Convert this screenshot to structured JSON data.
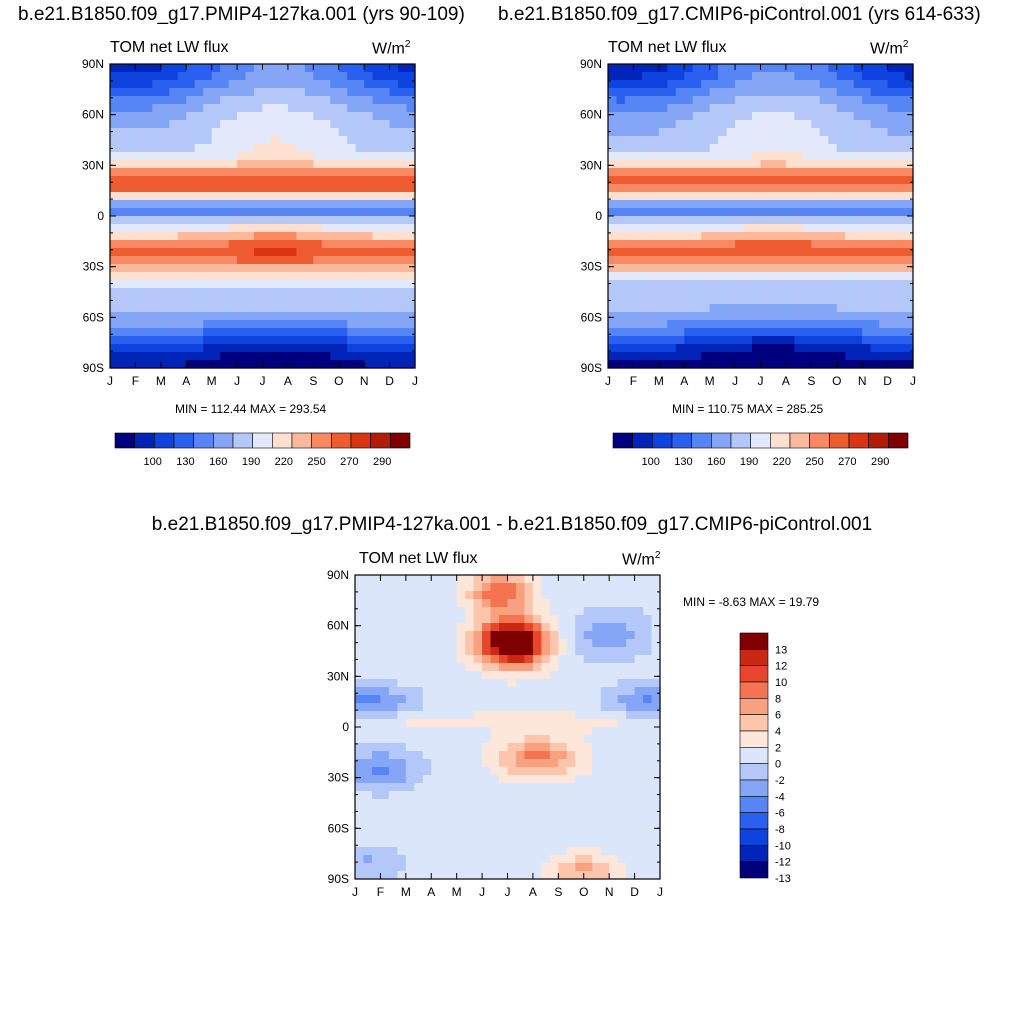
{
  "titles": {
    "left": "b.e21.B1850.f09_g17.PMIP4-127ka.001 (yrs 90-109)",
    "right": "b.e21.B1850.f09_g17.CMIP6-piControl.001 (yrs 614-633)",
    "diff": "b.e21.B1850.f09_g17.PMIP4-127ka.001 - b.e21.B1850.f09_g17.CMIP6-piControl.001"
  },
  "colors": {
    "palette13": [
      "#00007f",
      "#0024b8",
      "#0f43df",
      "#2a60f0",
      "#5685f5",
      "#85a6f6",
      "#b3c8f8",
      "#e1e9fb",
      "#fde0cf",
      "#fcb89b",
      "#f88a63",
      "#ef5c32",
      "#dc3315",
      "#b41c0a",
      "#7f0000"
    ],
    "diff_palette": [
      "#00007f",
      "#0024b8",
      "#0f43df",
      "#2a60f0",
      "#5685f5",
      "#85a6f6",
      "#b3c8f8",
      "#dbe6fa",
      "#fde7da",
      "#fcc5ac",
      "#f9a07f",
      "#f47451",
      "#e8462b",
      "#c92812",
      "#7f0000"
    ]
  },
  "chart_data": [
    {
      "type": "heatmap",
      "title": "TOM net LW flux",
      "units": "W/m2",
      "x_ticks": [
        "J",
        "F",
        "M",
        "A",
        "M",
        "J",
        "J",
        "A",
        "S",
        "O",
        "N",
        "D",
        "J"
      ],
      "y_ticks": [
        "90N",
        "60N",
        "30N",
        "0",
        "30S",
        "60S",
        "90S"
      ],
      "ylim": [
        -90,
        90
      ],
      "stats": "MIN = 112.44 MAX = 293.54",
      "min": 112.44,
      "max": 293.54,
      "colorbar": {
        "orientation": "horizontal",
        "levels": [
          100,
          110,
          120,
          130,
          140,
          150,
          160,
          170,
          180,
          190,
          200,
          210,
          220,
          230,
          240,
          250,
          260,
          270,
          280,
          290
        ],
        "labels": [
          "100",
          "130",
          "160",
          "190",
          "220",
          "250",
          "270",
          "290"
        ]
      }
    },
    {
      "type": "heatmap",
      "title": "TOM net LW flux",
      "units": "W/m2",
      "x_ticks": [
        "J",
        "F",
        "M",
        "A",
        "M",
        "J",
        "J",
        "A",
        "S",
        "O",
        "N",
        "D",
        "J"
      ],
      "y_ticks": [
        "90N",
        "60N",
        "30N",
        "0",
        "30S",
        "60S",
        "90S"
      ],
      "ylim": [
        -90,
        90
      ],
      "stats": "MIN = 110.75 MAX = 285.25",
      "min": 110.75,
      "max": 285.25,
      "colorbar": {
        "orientation": "horizontal",
        "labels": [
          "100",
          "130",
          "160",
          "190",
          "220",
          "250",
          "270",
          "290"
        ]
      }
    },
    {
      "type": "heatmap",
      "title": "TOM net LW flux",
      "units": "W/m2",
      "x_ticks": [
        "J",
        "F",
        "M",
        "A",
        "M",
        "J",
        "J",
        "A",
        "S",
        "O",
        "N",
        "D",
        "J"
      ],
      "y_ticks": [
        "90N",
        "60N",
        "30N",
        "0",
        "30S",
        "60S",
        "90S"
      ],
      "ylim": [
        -90,
        90
      ],
      "stats": "MIN =  -8.63 MAX =  19.79",
      "min": -8.63,
      "max": 19.79,
      "colorbar": {
        "orientation": "vertical",
        "labels": [
          "13",
          "12",
          "10",
          "8",
          "6",
          "4",
          "2",
          "0",
          "-2",
          "-4",
          "-6",
          "-8",
          "-10",
          "-12",
          "-13"
        ]
      }
    }
  ]
}
